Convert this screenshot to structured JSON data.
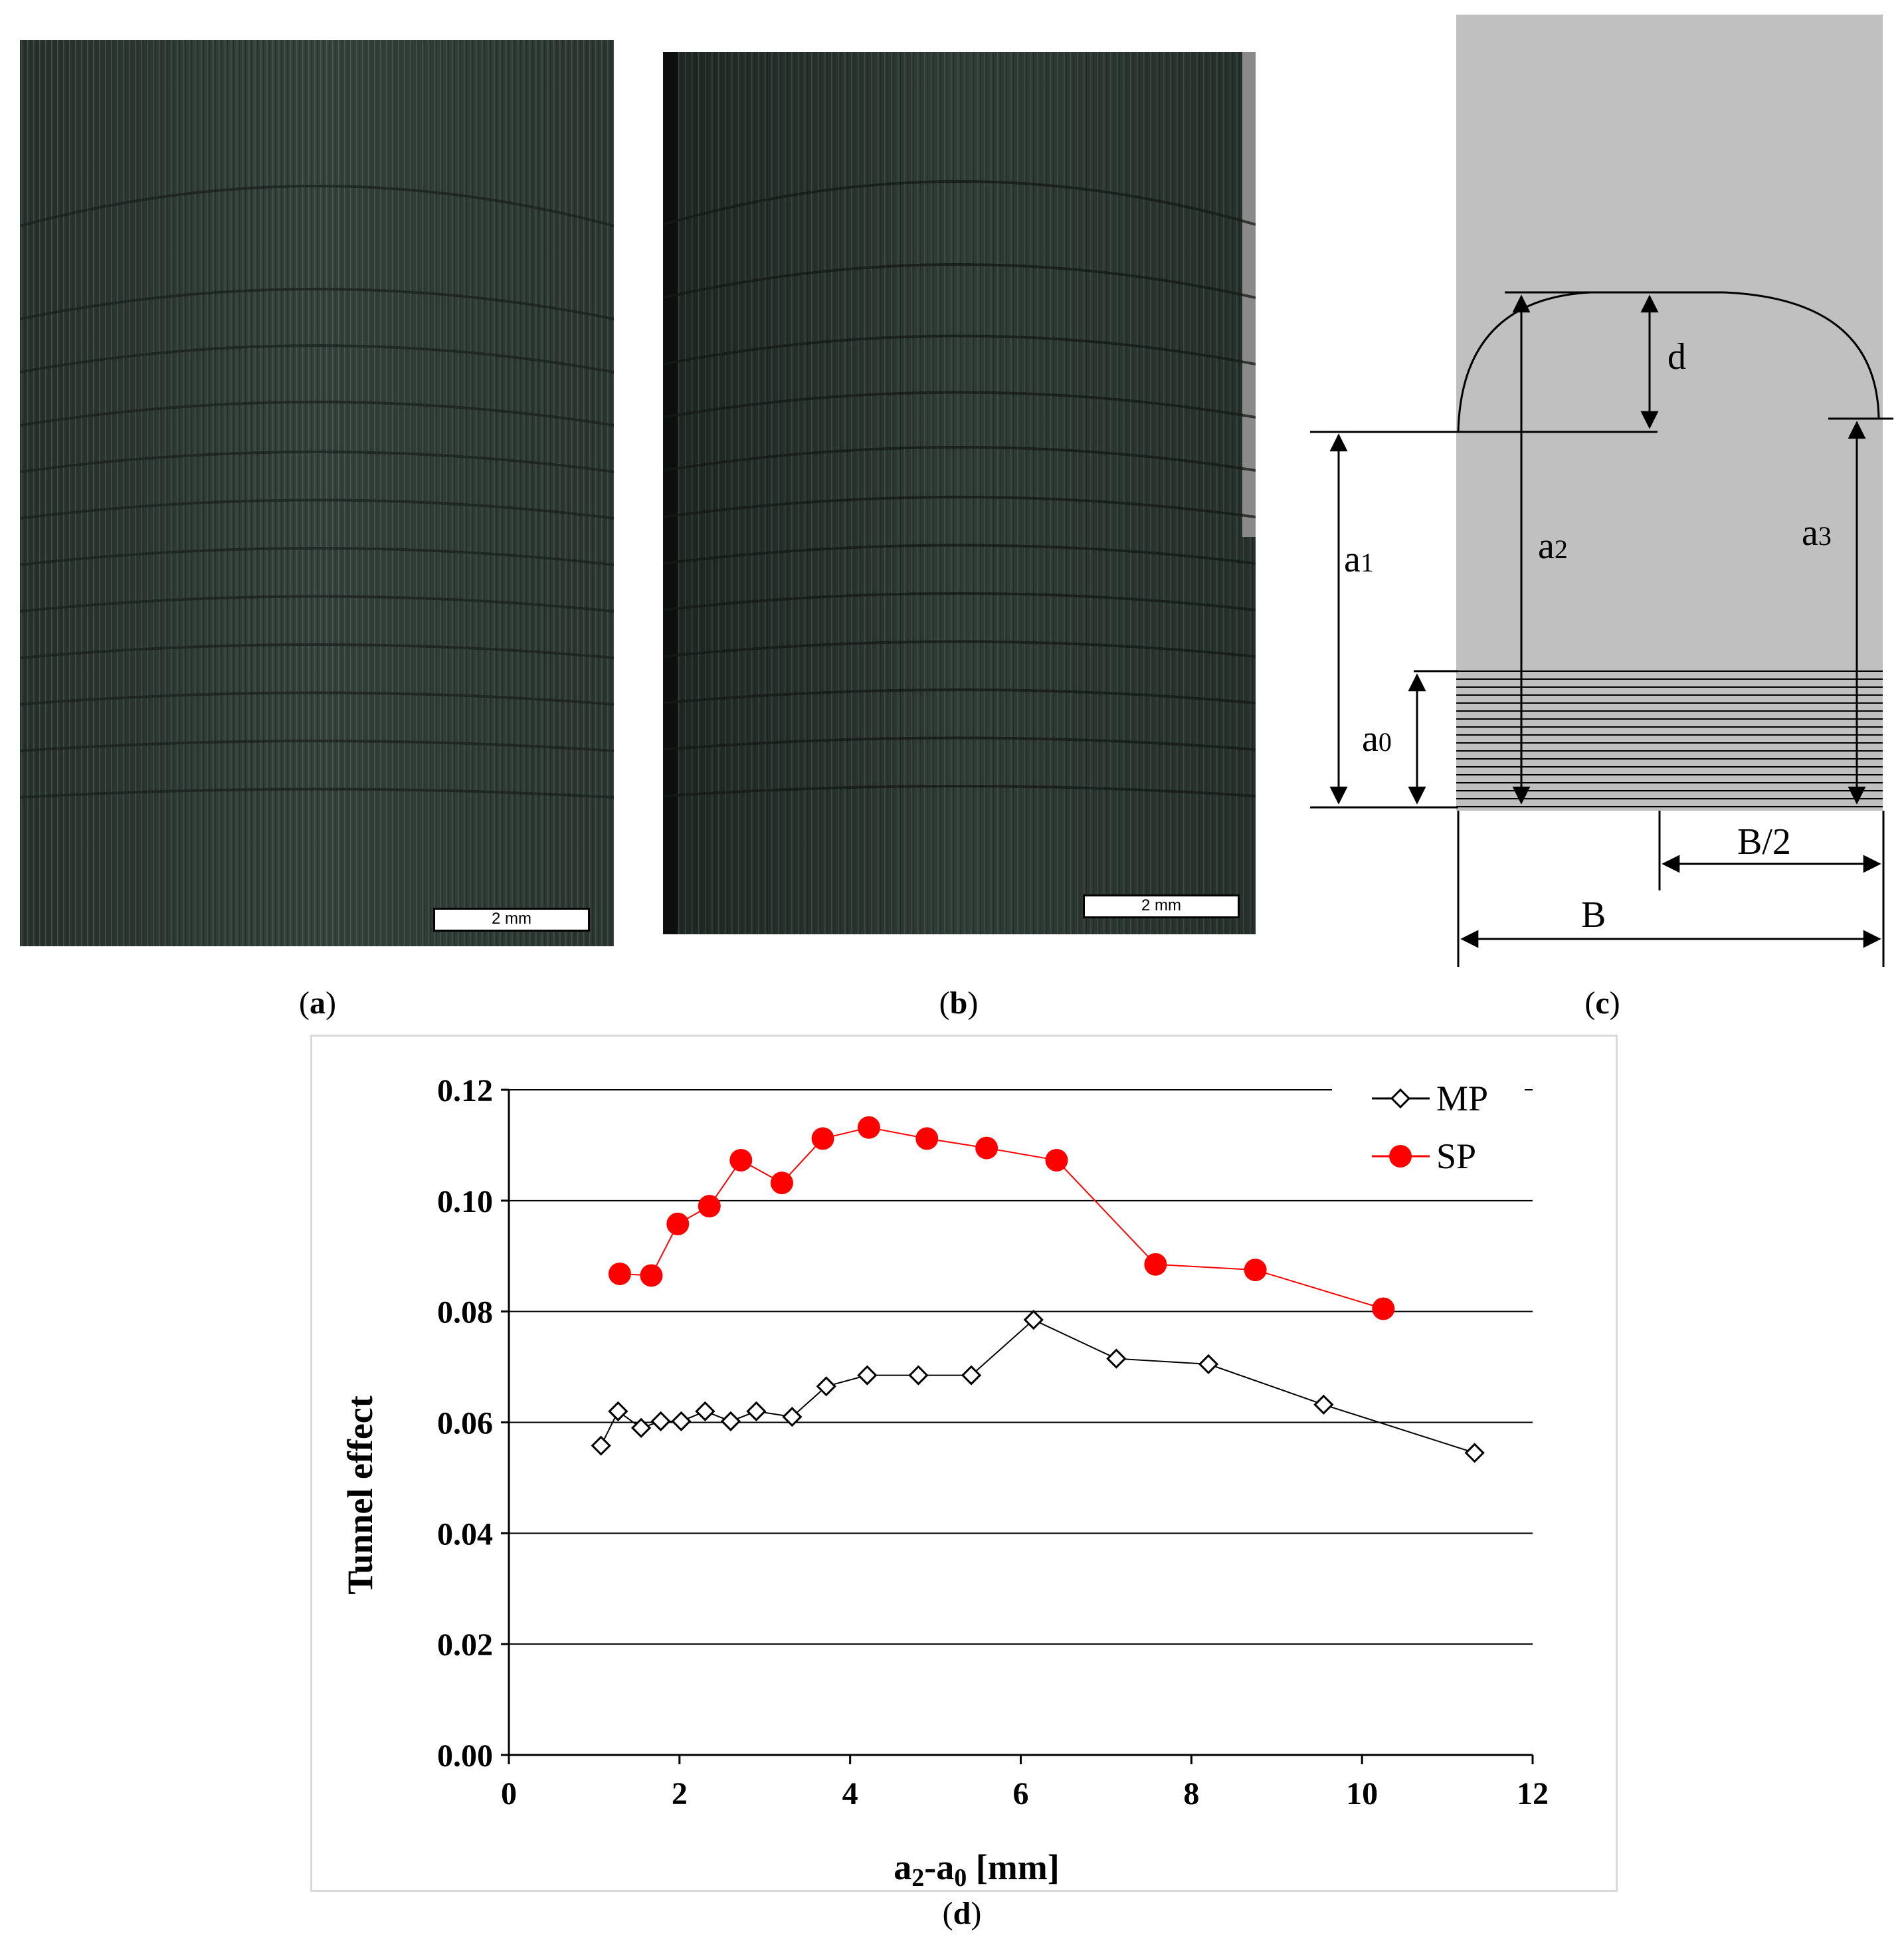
{
  "panels": {
    "a": {
      "caption_letter": "a",
      "scale_label": "2 mm"
    },
    "b": {
      "caption_letter": "b",
      "scale_label": "2 mm"
    },
    "c": {
      "caption_letter": "c",
      "labels": {
        "d": "d",
        "a1_main": "a",
        "a1_sub": "1",
        "a2_main": "a",
        "a2_sub": "2",
        "a3_main": "a",
        "a3_sub": "3",
        "a0_main": "a",
        "a0_sub": "0",
        "half_width": "B/2",
        "width": "B"
      }
    },
    "d": {
      "caption_letter": "d"
    }
  },
  "colors": {
    "specimen_gray": "#c0c0c0",
    "photo_base": "#2b3631",
    "sp_red": "#ff0000",
    "mp_black": "#000000"
  },
  "chart_data": {
    "type": "scatter",
    "title": "",
    "xlabel_main": "a",
    "xlabel_sub1": "2",
    "xlabel_dash": "-a",
    "xlabel_sub2": "0",
    "xlabel_unit": " [mm]",
    "ylabel": "Tunnel effect",
    "xlim": [
      0,
      12
    ],
    "ylim": [
      0,
      0.12
    ],
    "xticks": [
      0,
      2,
      4,
      6,
      8,
      10,
      12
    ],
    "yticks": [
      0.0,
      0.02,
      0.04,
      0.06,
      0.08,
      0.1,
      0.12
    ],
    "ytick_labels": [
      "0.00",
      "0.02",
      "0.04",
      "0.06",
      "0.08",
      "0.10",
      "0.12"
    ],
    "grid": "horizontal",
    "legend_position": "top-right",
    "series": [
      {
        "name": "MP",
        "marker": "diamond-open",
        "color": "#000000",
        "x": [
          1.08,
          1.28,
          1.55,
          1.78,
          2.02,
          2.3,
          2.6,
          2.9,
          3.32,
          3.72,
          4.2,
          4.8,
          5.42,
          6.15,
          7.12,
          8.2,
          9.55,
          11.32
        ],
        "y": [
          0.0558,
          0.062,
          0.059,
          0.0602,
          0.0602,
          0.062,
          0.0602,
          0.062,
          0.061,
          0.0665,
          0.0685,
          0.0685,
          0.0685,
          0.0785,
          0.0715,
          0.0705,
          0.0632,
          0.0545
        ]
      },
      {
        "name": "SP",
        "marker": "circle-filled",
        "color": "#ff0000",
        "x": [
          1.3,
          1.67,
          1.98,
          2.35,
          2.72,
          3.2,
          3.68,
          4.22,
          4.9,
          5.6,
          6.42,
          7.58,
          8.75,
          10.25
        ],
        "y": [
          0.0868,
          0.0865,
          0.0958,
          0.099,
          0.1073,
          0.1032,
          0.1112,
          0.1132,
          0.1112,
          0.1095,
          0.1073,
          0.0885,
          0.0875,
          0.0805
        ]
      }
    ]
  }
}
